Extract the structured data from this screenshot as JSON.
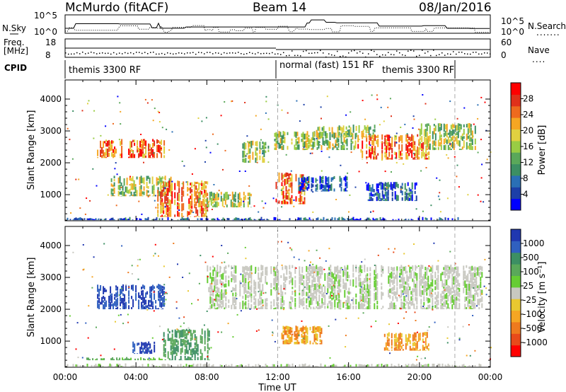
{
  "header": {
    "station": "McMurdo (fitACF)",
    "beam": "Beam 14",
    "date": "08/Jan/2016"
  },
  "strips": {
    "nsky_label": "N.Sky",
    "nsky_ticks": [
      "10^5",
      "10^0"
    ],
    "nsearch_label": "N.Search",
    "nsearch_ticks": [
      "10^5",
      "10^0"
    ],
    "freq_label_1": "Freq.",
    "freq_label_2": "[MHz]",
    "freq_ticks": [
      "18",
      "8"
    ],
    "nave_label": "Nave",
    "nave_ticks": [
      "60",
      "0"
    ],
    "cpid_label": "CPID",
    "cpid_segments": [
      "themis 3300 RF",
      "normal (fast) 151 RF",
      "themis 3300 RF"
    ]
  },
  "chart_data": [
    {
      "type": "heatmap",
      "panel": "power",
      "ylabel": "Slant Range [km]",
      "xlabel": "",
      "x_ticks": [
        "00:00",
        "04:00",
        "08:00",
        "12:00",
        "16:00",
        "20:00",
        "00:00"
      ],
      "y_ticks": [
        "1000",
        "2000",
        "3000",
        "4000"
      ],
      "xlim_hours": [
        0,
        24
      ],
      "ylim_km": [
        180,
        4600
      ],
      "colorbar": {
        "label": "Power [dB]",
        "ticks": [
          "4",
          "8",
          "12",
          "16",
          "20",
          "24",
          "28"
        ],
        "range": [
          0,
          30
        ],
        "colors": [
          "#0000ff",
          "#1c3fa8",
          "#2a6fb5",
          "#3c8f63",
          "#5aa85a",
          "#99cc44",
          "#e0d040",
          "#f5a623",
          "#ee6a1e",
          "#e0301a",
          "#ff0000"
        ]
      },
      "regions": [
        {
          "t0": 0.1,
          "t1": 22.2,
          "r0": 200,
          "r1": 300,
          "level": "low"
        },
        {
          "t0": 1.8,
          "t1": 5.6,
          "r0": 2150,
          "r1": 2750,
          "level": "high"
        },
        {
          "t0": 2.5,
          "t1": 6.0,
          "r0": 950,
          "r1": 1600,
          "level": "mid"
        },
        {
          "t0": 5.2,
          "t1": 8.0,
          "r0": 300,
          "r1": 1450,
          "level": "high"
        },
        {
          "t0": 7.5,
          "t1": 10.5,
          "r0": 600,
          "r1": 1100,
          "level": "mid"
        },
        {
          "t0": 10.0,
          "t1": 11.5,
          "r0": 2000,
          "r1": 2700,
          "level": "mid"
        },
        {
          "t0": 11.8,
          "t1": 13.5,
          "r0": 700,
          "r1": 1700,
          "level": "high"
        },
        {
          "t0": 11.8,
          "t1": 16.5,
          "r0": 2400,
          "r1": 3000,
          "level": "mid"
        },
        {
          "t0": 14.0,
          "t1": 17.5,
          "r0": 2800,
          "r1": 3200,
          "level": "mid"
        },
        {
          "t0": 16.5,
          "t1": 20.5,
          "r0": 2100,
          "r1": 2900,
          "level": "high"
        },
        {
          "t0": 20.0,
          "t1": 23.2,
          "r0": 2400,
          "r1": 3250,
          "level": "mid"
        },
        {
          "t0": 17.0,
          "t1": 20.0,
          "r0": 800,
          "r1": 1400,
          "level": "low"
        },
        {
          "t0": 13.0,
          "t1": 16.0,
          "r0": 1100,
          "r1": 1600,
          "level": "low"
        }
      ]
    },
    {
      "type": "heatmap",
      "panel": "velocity",
      "ylabel": "Slant Range [km]",
      "xlabel": "Time UT",
      "x_ticks": [
        "00:00",
        "04:00",
        "08:00",
        "12:00",
        "16:00",
        "20:00",
        "00:00"
      ],
      "y_ticks": [
        "1000",
        "2000",
        "3000",
        "4000"
      ],
      "xlim_hours": [
        0,
        24
      ],
      "ylim_km": [
        180,
        4600
      ],
      "colorbar": {
        "label": "Velocity [m s⁻¹]",
        "ticks": [
          "1000",
          "500",
          "100",
          "25",
          "-25",
          "-100",
          "-500",
          "-1000"
        ],
        "range": [
          -1000,
          1000
        ],
        "colors": [
          "#2038b0",
          "#3060c0",
          "#3c8f63",
          "#5aa85a",
          "#66cc33",
          "#c8c8c0",
          "#e8c830",
          "#f5a623",
          "#ee7a1e",
          "#e84a1a",
          "#ff0000"
        ]
      },
      "regions": [
        {
          "t0": 1.8,
          "t1": 5.6,
          "r0": 2000,
          "r1": 2800,
          "level": "pos_high"
        },
        {
          "t0": 5.3,
          "t1": 8.1,
          "r0": 400,
          "r1": 1400,
          "level": "pos_mid"
        },
        {
          "t0": 3.8,
          "t1": 5.0,
          "r0": 600,
          "r1": 1000,
          "level": "pos_high"
        },
        {
          "t0": 1.2,
          "t1": 5.5,
          "r0": 400,
          "r1": 500,
          "level": "pos_low"
        },
        {
          "t0": 8.0,
          "t1": 23.5,
          "r0": 2000,
          "r1": 3400,
          "level": "zero"
        },
        {
          "t0": 12.2,
          "t1": 14.5,
          "r0": 900,
          "r1": 1500,
          "level": "neg_mid"
        },
        {
          "t0": 18.0,
          "t1": 20.5,
          "r0": 700,
          "r1": 1300,
          "level": "neg_mid"
        },
        {
          "t0": 0.1,
          "t1": 23.5,
          "r0": 200,
          "r1": 300,
          "level": "zero"
        }
      ]
    }
  ]
}
